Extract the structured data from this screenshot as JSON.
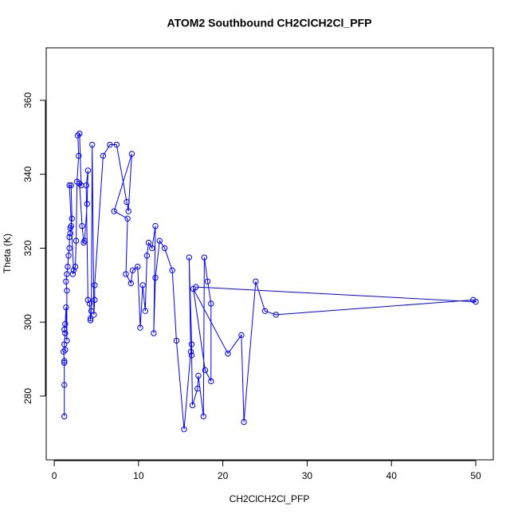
{
  "chart_data": {
    "type": "scatter-line",
    "title": "ATOM2 Southbound CH2ClCH2Cl_PFP",
    "x_label": "CH2ClCH2Cl_PFP",
    "y_label": "Theta (K)",
    "color": "#0000ff",
    "xlim": [
      -0.95,
      52.08
    ],
    "ylim": [
      262.75,
      374.2
    ],
    "xticks": [
      0,
      10,
      20,
      30,
      40,
      50
    ],
    "yticks": [
      280,
      300,
      320,
      340,
      360
    ],
    "x": [
      1.2,
      1.2,
      1.2,
      1.2,
      1.1,
      1.3,
      1.2,
      1.3,
      1.2,
      1.3,
      1.4,
      1.5,
      1.5,
      1.4,
      1.5,
      1.6,
      1.7,
      1.8,
      1.8,
      1.9,
      1.9,
      2.0,
      2.1,
      2.0,
      1.8,
      2.3,
      2.2,
      2.5,
      2.6,
      2.7,
      2.9,
      2.8,
      3.0,
      3.2,
      3.0,
      3.3,
      3.5,
      3.6,
      3.9,
      4.0,
      3.8,
      4.0,
      4.2,
      4.3,
      4.3,
      4.4,
      4.5,
      4.7,
      4.8,
      4.8,
      5.8,
      6.6,
      7.4,
      8.6,
      8.8,
      9.2,
      7.1,
      8.7,
      8.5,
      9.1,
      9.3,
      9.9,
      10.2,
      10.5,
      10.8,
      11.0,
      11.2,
      11.6,
      12.0,
      11.8,
      12.0,
      12.5,
      13.1,
      14.0,
      14.5,
      15.4,
      16.2,
      16.0,
      16.3,
      16.3,
      16.4,
      17.0,
      17.1,
      17.7,
      17.8,
      18.2,
      18.6,
      18.6,
      17.9,
      16.5,
      20.6,
      22.2,
      22.5,
      23.9,
      25.0,
      26.3,
      49.7,
      50.0,
      16.8
    ],
    "y": [
      274.5,
      283,
      289,
      289.5,
      292,
      292.5,
      294,
      297,
      298,
      299.5,
      304,
      295,
      308.5,
      311,
      313,
      315,
      318,
      320,
      323,
      324,
      325.5,
      326,
      328,
      337,
      337,
      314,
      313,
      315,
      322,
      338,
      345,
      350.5,
      351,
      337,
      337.5,
      326,
      321.5,
      322,
      332,
      341,
      337,
      306,
      305,
      301,
      300.5,
      303,
      348,
      302,
      306,
      310,
      345,
      348,
      348,
      332.5,
      330,
      345.5,
      330,
      328,
      313,
      310.5,
      314,
      315,
      298.5,
      310,
      303,
      318,
      321.5,
      320,
      326,
      297,
      312,
      322,
      320,
      314,
      295,
      271,
      292,
      317.5,
      294,
      291,
      277.5,
      282,
      285.5,
      274.5,
      317.5,
      311,
      305,
      284,
      287,
      309,
      291.5,
      296.5,
      273,
      311,
      303,
      302,
      306,
      305.5,
      309.5
    ]
  }
}
